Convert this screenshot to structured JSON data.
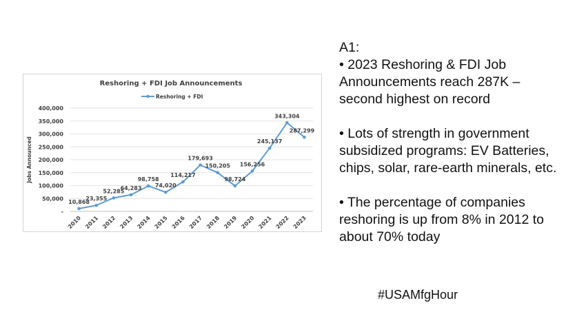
{
  "chart_data": {
    "type": "line",
    "title": "Reshoring + FDI Job Announcements",
    "ylabel": "Jobs Announced",
    "xlabel": "",
    "ylim": [
      0,
      400000
    ],
    "yticks": [
      "-",
      "50,000",
      "100,000",
      "150,000",
      "200,000",
      "250,000",
      "300,000",
      "350,000",
      "400,000"
    ],
    "legend": {
      "position": "top-center",
      "entries": [
        "Reshoring + FDI"
      ]
    },
    "color": "#5b9bd5",
    "x": [
      "2010",
      "2011",
      "2012",
      "2013",
      "2014",
      "2015",
      "2016",
      "2017",
      "2018",
      "2019",
      "2020",
      "2021",
      "2022",
      "2023"
    ],
    "series": [
      {
        "name": "Reshoring + FDI",
        "values": [
          10868,
          23355,
          52285,
          64283,
          98758,
          74020,
          114217,
          179693,
          150205,
          98724,
          156256,
          245137,
          343304,
          287299
        ],
        "labels": [
          "10,868",
          "23,355",
          "52,285",
          "64,283",
          "98,758",
          "74,020",
          "114,217",
          "179,693",
          "150,205",
          "98,724",
          "156,256",
          "245,137",
          "343,304",
          "287,299"
        ]
      }
    ]
  },
  "notes": {
    "heading": "A1:",
    "bullets": [
      "• 2023 Reshoring & FDI Job Announcements reach 287K – second highest on record",
      "• Lots of strength in government subsidized programs: EV Batteries, chips, solar, rare-earth minerals, etc.",
      "• The percentage of companies reshoring is up from 8% in 2012 to about 70% today"
    ]
  },
  "hashtag": "#USAMfgHour"
}
